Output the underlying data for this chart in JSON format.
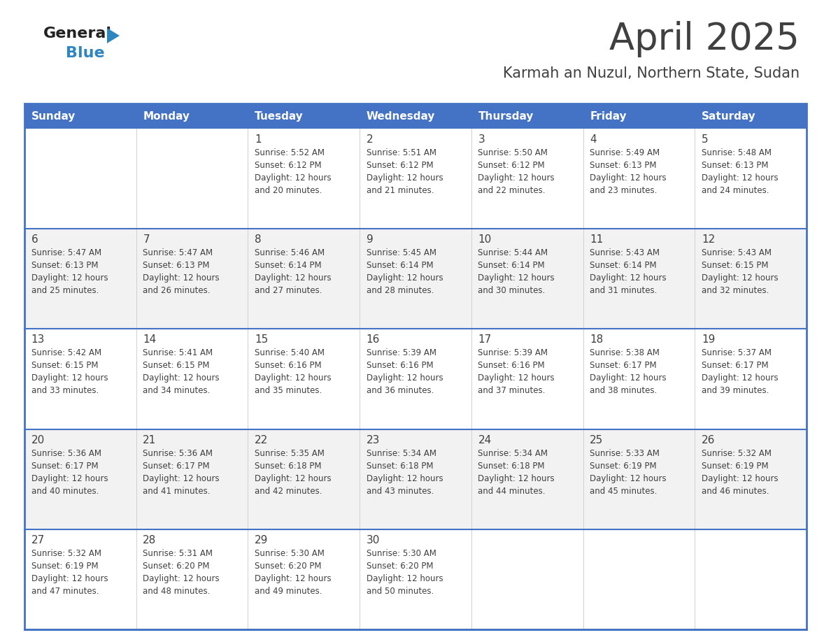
{
  "title": "April 2025",
  "subtitle": "Karmah an Nuzul, Northern State, Sudan",
  "header_color": "#4472C4",
  "header_text_color": "#FFFFFF",
  "header_days": [
    "Sunday",
    "Monday",
    "Tuesday",
    "Wednesday",
    "Thursday",
    "Friday",
    "Saturday"
  ],
  "bg_color": "#FFFFFF",
  "row_alt_color": "#F2F2F2",
  "border_color": "#4472C4",
  "row_border_color": "#4472C4",
  "col_line_color": "#D0D0D0",
  "text_color": "#404040",
  "calendar_data": [
    [
      {
        "day": "",
        "info": ""
      },
      {
        "day": "",
        "info": ""
      },
      {
        "day": "1",
        "info": "Sunrise: 5:52 AM\nSunset: 6:12 PM\nDaylight: 12 hours\nand 20 minutes."
      },
      {
        "day": "2",
        "info": "Sunrise: 5:51 AM\nSunset: 6:12 PM\nDaylight: 12 hours\nand 21 minutes."
      },
      {
        "day": "3",
        "info": "Sunrise: 5:50 AM\nSunset: 6:12 PM\nDaylight: 12 hours\nand 22 minutes."
      },
      {
        "day": "4",
        "info": "Sunrise: 5:49 AM\nSunset: 6:13 PM\nDaylight: 12 hours\nand 23 minutes."
      },
      {
        "day": "5",
        "info": "Sunrise: 5:48 AM\nSunset: 6:13 PM\nDaylight: 12 hours\nand 24 minutes."
      }
    ],
    [
      {
        "day": "6",
        "info": "Sunrise: 5:47 AM\nSunset: 6:13 PM\nDaylight: 12 hours\nand 25 minutes."
      },
      {
        "day": "7",
        "info": "Sunrise: 5:47 AM\nSunset: 6:13 PM\nDaylight: 12 hours\nand 26 minutes."
      },
      {
        "day": "8",
        "info": "Sunrise: 5:46 AM\nSunset: 6:14 PM\nDaylight: 12 hours\nand 27 minutes."
      },
      {
        "day": "9",
        "info": "Sunrise: 5:45 AM\nSunset: 6:14 PM\nDaylight: 12 hours\nand 28 minutes."
      },
      {
        "day": "10",
        "info": "Sunrise: 5:44 AM\nSunset: 6:14 PM\nDaylight: 12 hours\nand 30 minutes."
      },
      {
        "day": "11",
        "info": "Sunrise: 5:43 AM\nSunset: 6:14 PM\nDaylight: 12 hours\nand 31 minutes."
      },
      {
        "day": "12",
        "info": "Sunrise: 5:43 AM\nSunset: 6:15 PM\nDaylight: 12 hours\nand 32 minutes."
      }
    ],
    [
      {
        "day": "13",
        "info": "Sunrise: 5:42 AM\nSunset: 6:15 PM\nDaylight: 12 hours\nand 33 minutes."
      },
      {
        "day": "14",
        "info": "Sunrise: 5:41 AM\nSunset: 6:15 PM\nDaylight: 12 hours\nand 34 minutes."
      },
      {
        "day": "15",
        "info": "Sunrise: 5:40 AM\nSunset: 6:16 PM\nDaylight: 12 hours\nand 35 minutes."
      },
      {
        "day": "16",
        "info": "Sunrise: 5:39 AM\nSunset: 6:16 PM\nDaylight: 12 hours\nand 36 minutes."
      },
      {
        "day": "17",
        "info": "Sunrise: 5:39 AM\nSunset: 6:16 PM\nDaylight: 12 hours\nand 37 minutes."
      },
      {
        "day": "18",
        "info": "Sunrise: 5:38 AM\nSunset: 6:17 PM\nDaylight: 12 hours\nand 38 minutes."
      },
      {
        "day": "19",
        "info": "Sunrise: 5:37 AM\nSunset: 6:17 PM\nDaylight: 12 hours\nand 39 minutes."
      }
    ],
    [
      {
        "day": "20",
        "info": "Sunrise: 5:36 AM\nSunset: 6:17 PM\nDaylight: 12 hours\nand 40 minutes."
      },
      {
        "day": "21",
        "info": "Sunrise: 5:36 AM\nSunset: 6:17 PM\nDaylight: 12 hours\nand 41 minutes."
      },
      {
        "day": "22",
        "info": "Sunrise: 5:35 AM\nSunset: 6:18 PM\nDaylight: 12 hours\nand 42 minutes."
      },
      {
        "day": "23",
        "info": "Sunrise: 5:34 AM\nSunset: 6:18 PM\nDaylight: 12 hours\nand 43 minutes."
      },
      {
        "day": "24",
        "info": "Sunrise: 5:34 AM\nSunset: 6:18 PM\nDaylight: 12 hours\nand 44 minutes."
      },
      {
        "day": "25",
        "info": "Sunrise: 5:33 AM\nSunset: 6:19 PM\nDaylight: 12 hours\nand 45 minutes."
      },
      {
        "day": "26",
        "info": "Sunrise: 5:32 AM\nSunset: 6:19 PM\nDaylight: 12 hours\nand 46 minutes."
      }
    ],
    [
      {
        "day": "27",
        "info": "Sunrise: 5:32 AM\nSunset: 6:19 PM\nDaylight: 12 hours\nand 47 minutes."
      },
      {
        "day": "28",
        "info": "Sunrise: 5:31 AM\nSunset: 6:20 PM\nDaylight: 12 hours\nand 48 minutes."
      },
      {
        "day": "29",
        "info": "Sunrise: 5:30 AM\nSunset: 6:20 PM\nDaylight: 12 hours\nand 49 minutes."
      },
      {
        "day": "30",
        "info": "Sunrise: 5:30 AM\nSunset: 6:20 PM\nDaylight: 12 hours\nand 50 minutes."
      },
      {
        "day": "",
        "info": ""
      },
      {
        "day": "",
        "info": ""
      },
      {
        "day": "",
        "info": ""
      }
    ]
  ],
  "logo_text_general": "General",
  "logo_text_blue": "Blue",
  "logo_color_general": "#222222",
  "logo_color_blue": "#2E86C1",
  "logo_triangle_color": "#2E86C1",
  "title_fontsize": 38,
  "subtitle_fontsize": 15,
  "header_fontsize": 11,
  "day_num_fontsize": 11,
  "info_fontsize": 8.5
}
